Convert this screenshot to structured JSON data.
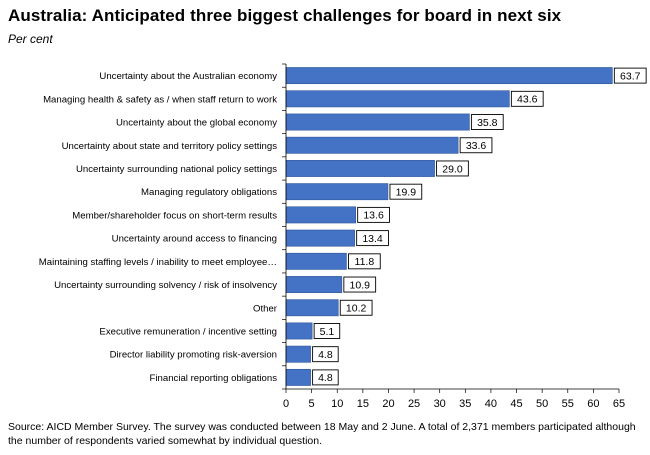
{
  "title": "Australia:  Anticipated three biggest challenges for board in next six",
  "subtitle": "Per cent",
  "source": "Source: AICD Member Survey.  The survey was conducted between 18 May and 2 June.  A total of 2,371 members participated although the number of respondents varied somewhat by individual question.",
  "colors": {
    "bar": "#4472c4",
    "bar_edge": "#2f5597",
    "axis": "#7f7f7f"
  },
  "chart_data": {
    "type": "bar",
    "orientation": "horizontal",
    "title": "Australia:  Anticipated three biggest challenges for board in next six",
    "subtitle": "Per cent",
    "categories": [
      "Uncertainty about the Australian economy",
      "Managing  health & safety as / when staff return to work",
      "Uncertainty about the global economy",
      "Uncertainty about state and territory policy settings",
      "Uncertainty surrounding national policy settings",
      "Managing regulatory obligations",
      "Member/shareholder focus on short-term results",
      "Uncertainty around access to financing",
      "Maintaining staffing levels / inability to meet employee…",
      "Uncertainty surrounding solvency / risk of insolvency",
      "Other",
      "Executive remuneration / incentive setting",
      "Director liability promoting risk-aversion",
      "Financial reporting obligations"
    ],
    "values": [
      63.7,
      43.6,
      35.8,
      33.6,
      29.0,
      19.9,
      13.6,
      13.4,
      11.8,
      10.9,
      10.2,
      5.1,
      4.8,
      4.8
    ],
    "data_labels": [
      "63.7",
      "43.6",
      "35.8",
      "33.6",
      "29.0",
      "19.9",
      "13.6",
      "13.4",
      "11.8",
      "10.9",
      "10.2",
      "5.1",
      "4.8",
      "4.8"
    ],
    "xlim": [
      0,
      65
    ],
    "xticks": [
      0,
      5,
      10,
      15,
      20,
      25,
      30,
      35,
      40,
      45,
      50,
      55,
      60,
      65
    ],
    "xlabel": "",
    "ylabel": "",
    "grid": false,
    "legend": "none"
  }
}
